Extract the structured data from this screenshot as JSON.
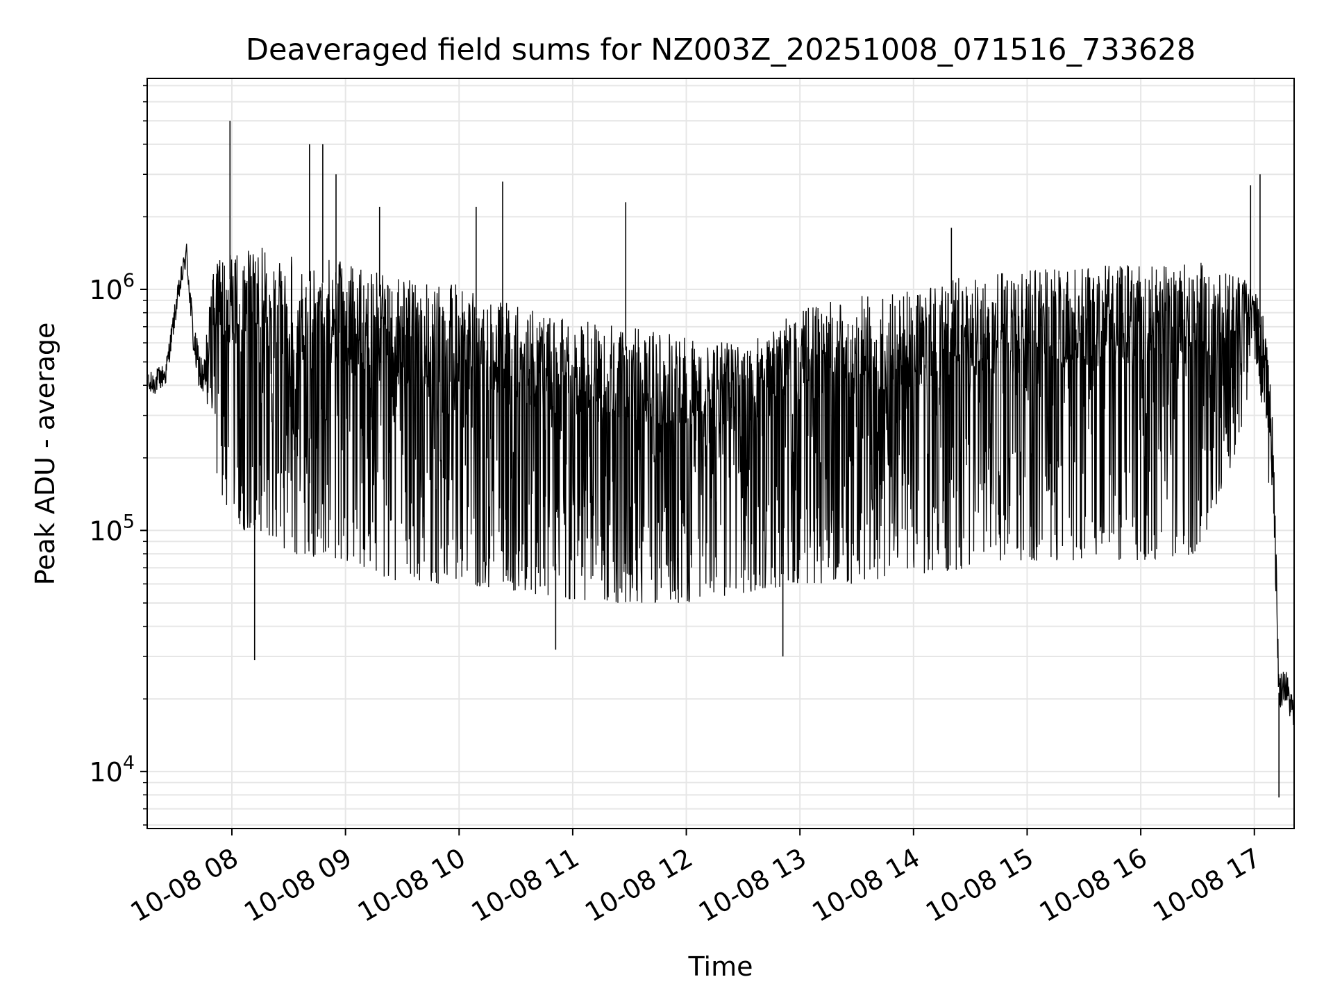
{
  "chart_data": {
    "type": "line",
    "title": "Deaveraged field sums for NZ003Z_20251008_071516_733628",
    "xlabel": "Time",
    "ylabel": "Peak ADU - average",
    "y_scale": "log",
    "ylim": [
      5800,
      7500000
    ],
    "xlim": [
      "2025-10-08 07:15:16",
      "2025-10-08 17:21:00"
    ],
    "x_ticks": [
      "2025-10-08 08:00",
      "2025-10-08 09:00",
      "2025-10-08 10:00",
      "2025-10-08 11:00",
      "2025-10-08 12:00",
      "2025-10-08 13:00",
      "2025-10-08 14:00",
      "2025-10-08 15:00",
      "2025-10-08 16:00",
      "2025-10-08 17:00"
    ],
    "x_tick_labels": [
      "10-08 08",
      "10-08 09",
      "10-08 10",
      "10-08 11",
      "10-08 12",
      "10-08 13",
      "10-08 14",
      "10-08 15",
      "10-08 16",
      "10-08 17"
    ],
    "y_ticks": [
      10000,
      100000,
      1000000
    ],
    "y_tick_labels": [
      {
        "base": "10",
        "exp": "4"
      },
      {
        "base": "10",
        "exp": "5"
      },
      {
        "base": "10",
        "exp": "6"
      }
    ],
    "grid": true,
    "line_color": "#000000",
    "grid_color": "#e6e6e6",
    "envelope": {
      "x": [
        "2025-10-08 07:16",
        "2025-10-08 07:25",
        "2025-10-08 07:31",
        "2025-10-08 07:36",
        "2025-10-08 07:40",
        "2025-10-08 07:45",
        "2025-10-08 07:50",
        "2025-10-08 08:00",
        "2025-10-08 08:15",
        "2025-10-08 08:30",
        "2025-10-08 09:00",
        "2025-10-08 09:30",
        "2025-10-08 10:00",
        "2025-10-08 10:30",
        "2025-10-08 11:00",
        "2025-10-08 11:30",
        "2025-10-08 12:00",
        "2025-10-08 12:30",
        "2025-10-08 13:00",
        "2025-10-08 13:30",
        "2025-10-08 14:00",
        "2025-10-08 14:30",
        "2025-10-08 15:00",
        "2025-10-08 15:30",
        "2025-10-08 16:00",
        "2025-10-08 16:30",
        "2025-10-08 16:50",
        "2025-10-08 17:00",
        "2025-10-08 17:05",
        "2025-10-08 17:10",
        "2025-10-08 17:13",
        "2025-10-08 17:16",
        "2025-10-08 17:21"
      ],
      "upper": [
        450000,
        500000,
        1000000,
        1600000,
        700000,
        500000,
        1300000,
        1400000,
        1500000,
        1400000,
        1300000,
        1100000,
        1050000,
        850000,
        750000,
        700000,
        650000,
        600000,
        850000,
        950000,
        1000000,
        1150000,
        1200000,
        1250000,
        1300000,
        1300000,
        1200000,
        1000000,
        800000,
        300000,
        25000,
        28000,
        20000
      ],
      "lower": [
        300000,
        350000,
        700000,
        1100000,
        400000,
        250000,
        150000,
        100000,
        100000,
        80000,
        75000,
        60000,
        60000,
        55000,
        50000,
        50000,
        50000,
        55000,
        60000,
        60000,
        65000,
        70000,
        75000,
        75000,
        75000,
        80000,
        200000,
        500000,
        300000,
        80000,
        15000,
        16000,
        12000
      ]
    },
    "spikes": [
      {
        "x": "2025-10-08 07:59",
        "y": 5000000
      },
      {
        "x": "2025-10-08 08:41",
        "y": 4000000
      },
      {
        "x": "2025-10-08 08:48",
        "y": 4000000
      },
      {
        "x": "2025-10-08 08:55",
        "y": 3000000
      },
      {
        "x": "2025-10-08 09:18",
        "y": 2200000
      },
      {
        "x": "2025-10-08 10:09",
        "y": 2200000
      },
      {
        "x": "2025-10-08 10:23",
        "y": 2800000
      },
      {
        "x": "2025-10-08 11:28",
        "y": 2300000
      },
      {
        "x": "2025-10-08 14:20",
        "y": 1800000
      },
      {
        "x": "2025-10-08 16:58",
        "y": 2700000
      },
      {
        "x": "2025-10-08 17:03",
        "y": 3000000
      },
      {
        "x": "2025-10-08 08:12",
        "y": 29000
      },
      {
        "x": "2025-10-08 12:51",
        "y": 30000
      },
      {
        "x": "2025-10-08 10:51",
        "y": 32000
      },
      {
        "x": "2025-10-08 17:13",
        "y": 7800
      }
    ]
  }
}
